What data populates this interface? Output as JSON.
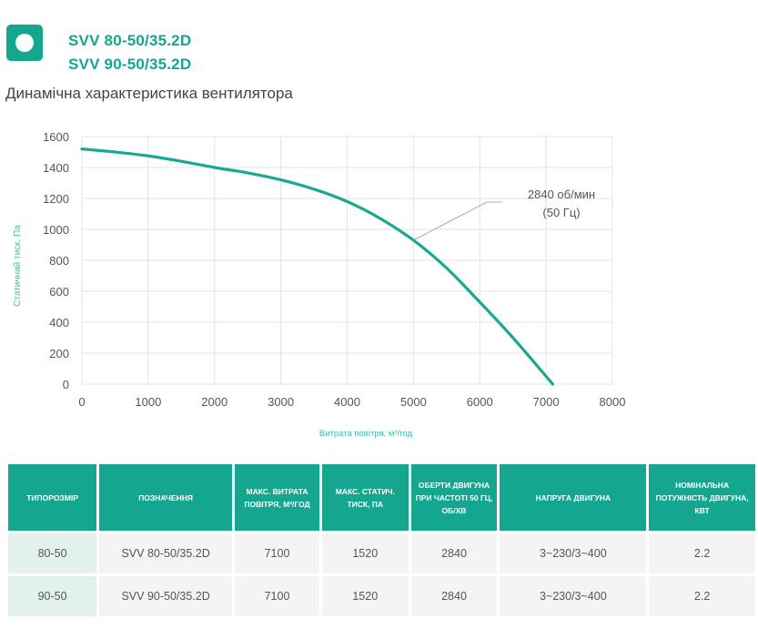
{
  "header": {
    "logo_icon": "circle-in-square-icon",
    "models": [
      "SVV 80-50/35.2D",
      "SVV 90-50/35.2D"
    ],
    "subtitle": "Динамічна характеристика вентилятора"
  },
  "colors": {
    "accent": "#14a68f",
    "curve": "#1aa891",
    "grid": "#e3e3e3",
    "size_cell_bg": "#e3f1ee",
    "cell_bg": "#f4f4f4"
  },
  "chart_data": {
    "type": "line",
    "title": "Динамічна характеристика вентилятора",
    "xlabel": "Витрата повітря, м³/год",
    "ylabel": "Статичний тиск, Па",
    "xlim": [
      0,
      8000
    ],
    "ylim": [
      0,
      1600
    ],
    "xticks": [
      0,
      1000,
      2000,
      3000,
      4000,
      5000,
      6000,
      7000,
      8000
    ],
    "yticks": [
      0,
      200,
      400,
      600,
      800,
      1000,
      1200,
      1400,
      1600
    ],
    "grid": true,
    "series": [
      {
        "name": "2840 об/мин (50 Гц)",
        "x": [
          0,
          500,
          1000,
          1500,
          2000,
          2500,
          3000,
          3500,
          4000,
          4500,
          5000,
          5500,
          6000,
          6500,
          7100
        ],
        "y": [
          1520,
          1500,
          1475,
          1440,
          1400,
          1365,
          1320,
          1260,
          1180,
          1070,
          930,
          750,
          530,
          300,
          0
        ]
      }
    ],
    "annotation": {
      "line1": "2840 об/мин",
      "line2": "(50 Гц)",
      "points_to": [
        5000,
        930
      ]
    }
  },
  "table": {
    "headers": [
      "Типорозмір",
      "Позначення",
      "Макс. витрата повітря, м³/год",
      "Макс. статич. тиск, Па",
      "Оберти двигуна при частоті 50 Гц, об/хв",
      "Напруга двигуна",
      "Номінальна потужність двигуна, кВт"
    ],
    "rows": [
      [
        "80-50",
        "SVV 80-50/35.2D",
        "7100",
        "1520",
        "2840",
        "3~230/3~400",
        "2.2"
      ],
      [
        "90-50",
        "SVV 90-50/35.2D",
        "7100",
        "1520",
        "2840",
        "3~230/3~400",
        "2.2"
      ]
    ]
  }
}
